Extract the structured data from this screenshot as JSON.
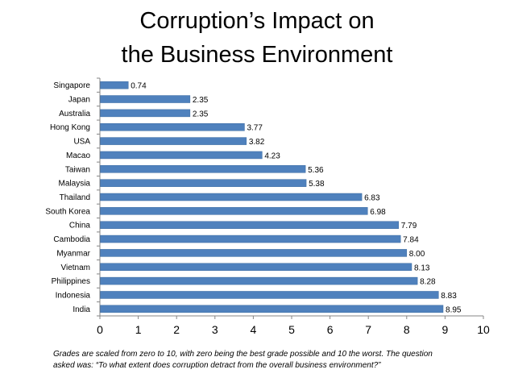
{
  "chart_data": {
    "type": "bar",
    "orientation": "horizontal",
    "title_line1": "Corruption’s Impact on",
    "title_line2": "the Business Environment",
    "categories": [
      "Singapore",
      "Japan",
      "Australia",
      "Hong Kong",
      "USA",
      "Macao",
      "Taiwan",
      "Malaysia",
      "Thailand",
      "South Korea",
      "China",
      "Cambodia",
      "Myanmar",
      "Vietnam",
      "Philippines",
      "Indonesia",
      "India"
    ],
    "values": [
      0.74,
      2.35,
      2.35,
      3.77,
      3.82,
      4.23,
      5.36,
      5.38,
      6.83,
      6.98,
      7.79,
      7.84,
      8.0,
      8.13,
      8.28,
      8.83,
      8.95
    ],
    "value_labels": [
      "0.74",
      "2.35",
      "2.35",
      "3.77",
      "3.82",
      "4.23",
      "5.36",
      "5.38",
      "6.83",
      "6.98",
      "7.79",
      "7.84",
      "8.00",
      "8.13",
      "8.28",
      "8.83",
      "8.95"
    ],
    "xlim": [
      0,
      10
    ],
    "xticks": [
      "0",
      "1",
      "2",
      "3",
      "4",
      "5",
      "6",
      "7",
      "8",
      "9",
      "10"
    ],
    "bar_color": "#4F81BD",
    "bar_edge_color": "#3A6AA0",
    "grid": false,
    "legend": "none"
  },
  "footnote": {
    "line1": "Grades are scaled from zero to 10, with zero being the best grade possible and 10 the worst.  The question",
    "line2": "asked was:  “To what extent does corruption detract from the overall business environment?”"
  }
}
